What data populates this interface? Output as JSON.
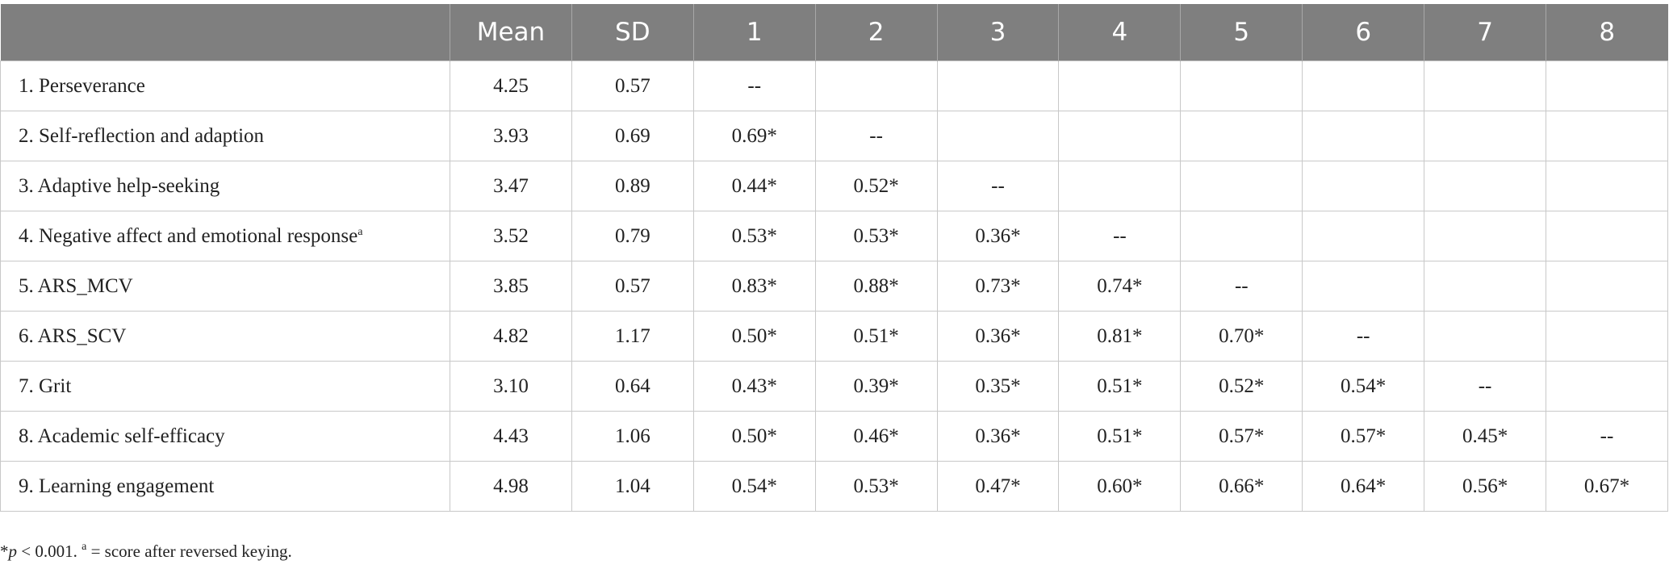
{
  "table": {
    "header": [
      "Mean",
      "SD",
      "1",
      "2",
      "3",
      "4",
      "5",
      "6",
      "7",
      "8"
    ],
    "rows": [
      {
        "label": "1. Perseverance",
        "mean": "4.25",
        "sd": "0.57",
        "correlations": [
          "--"
        ]
      },
      {
        "label": "2. Self-reflection and adaption",
        "mean": "3.93",
        "sd": "0.69",
        "correlations": [
          "0.69*",
          "--"
        ]
      },
      {
        "label": "3. Adaptive help-seeking",
        "mean": "3.47",
        "sd": "0.89",
        "correlations": [
          "0.44*",
          "0.52*",
          "--"
        ]
      },
      {
        "label": "4. Negative affect and emotional response",
        "label_sup": "a",
        "mean": "3.52",
        "sd": "0.79",
        "correlations": [
          "0.53*",
          "0.53*",
          "0.36*",
          "--"
        ]
      },
      {
        "label": "5. ARS_MCV",
        "mean": "3.85",
        "sd": "0.57",
        "correlations": [
          "0.83*",
          "0.88*",
          "0.73*",
          "0.74*",
          "--"
        ]
      },
      {
        "label": "6. ARS_SCV",
        "mean": "4.82",
        "sd": "1.17",
        "correlations": [
          "0.50*",
          "0.51*",
          "0.36*",
          "0.81*",
          "0.70*",
          "--"
        ]
      },
      {
        "label": "7. Grit",
        "mean": "3.10",
        "sd": "0.64",
        "correlations": [
          "0.43*",
          "0.39*",
          "0.35*",
          "0.51*",
          "0.52*",
          "0.54*",
          "--"
        ]
      },
      {
        "label": "8. Academic self-efficacy",
        "mean": "4.43",
        "sd": "1.06",
        "correlations": [
          "0.50*",
          "0.46*",
          "0.36*",
          "0.51*",
          "0.57*",
          "0.57*",
          "0.45*",
          "--"
        ]
      },
      {
        "label": "9. Learning engagement",
        "mean": "4.98",
        "sd": "1.04",
        "correlations": [
          "0.54*",
          "0.53*",
          "0.47*",
          "0.60*",
          "0.66*",
          "0.64*",
          "0.56*",
          "0.67*"
        ]
      }
    ]
  },
  "footnote": {
    "star": "*",
    "p": "p",
    "text1": " < 0.001. ",
    "sup": "a",
    "text2": " = score after reversed keying."
  }
}
